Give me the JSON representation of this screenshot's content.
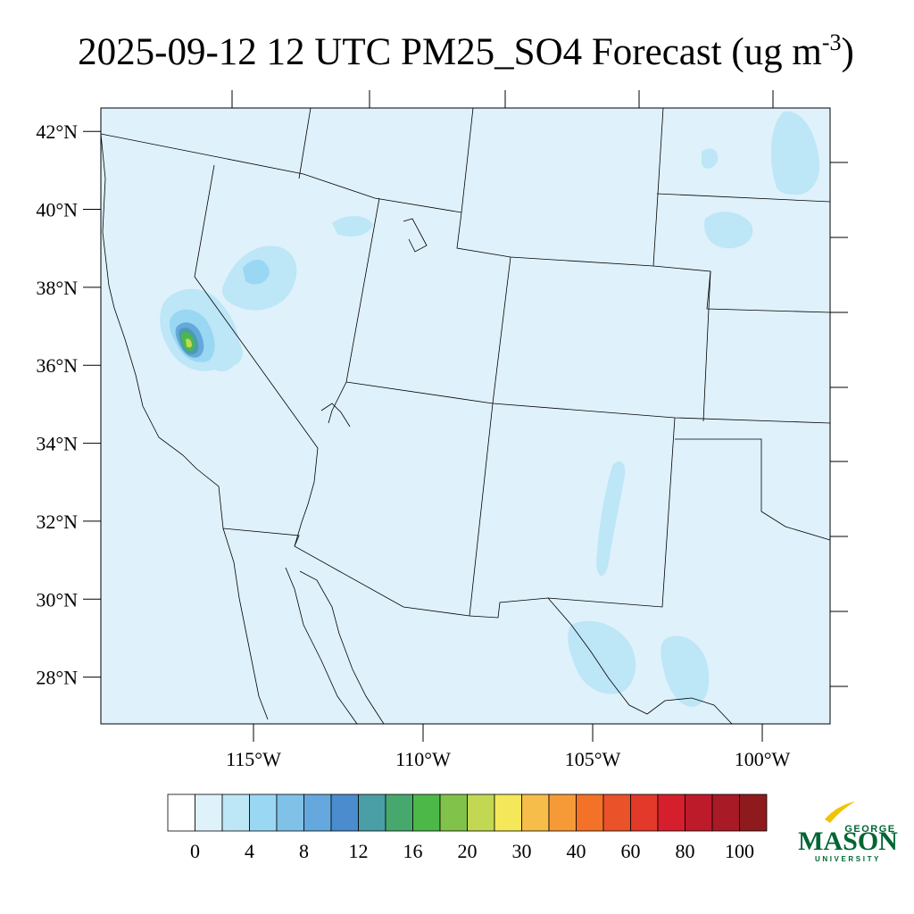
{
  "title": {
    "prefix": "2025-09-12 12 UTC PM25_SO4 Forecast (ug m",
    "exponent": "-3",
    "suffix": ")"
  },
  "map": {
    "lon_range": [
      -119.5,
      -98.0
    ],
    "lat_range": [
      26.8,
      42.6
    ],
    "background_color": "#dff1fb",
    "lat_ticks": [
      {
        "value": 42,
        "label": "42°N"
      },
      {
        "value": 40,
        "label": "40°N"
      },
      {
        "value": 38,
        "label": "38°N"
      },
      {
        "value": 36,
        "label": "36°N"
      },
      {
        "value": 34,
        "label": "34°N"
      },
      {
        "value": 32,
        "label": "32°N"
      },
      {
        "value": 30,
        "label": "30°N"
      },
      {
        "value": 28,
        "label": "28°N"
      }
    ],
    "lon_ticks": [
      {
        "value": -115,
        "label": "115°W"
      },
      {
        "value": -110,
        "label": "110°W"
      },
      {
        "value": -105,
        "label": "105°W"
      },
      {
        "value": -100,
        "label": "100°W"
      }
    ]
  },
  "colorbar": {
    "colors": [
      "#ffffff",
      "#dff1fb",
      "#bde6f7",
      "#9ad7f3",
      "#80c1e8",
      "#65a8dd",
      "#4a8ccd",
      "#4a9ea6",
      "#47a86e",
      "#4cb848",
      "#80c24a",
      "#c2d852",
      "#f4e85a",
      "#f7bd4a",
      "#f69a38",
      "#f37227",
      "#ea522a",
      "#e2392a",
      "#d61f2c",
      "#bd1b2a",
      "#a81a25",
      "#8e1a1e"
    ],
    "tick_labels": [
      "0",
      "4",
      "8",
      "12",
      "16",
      "20",
      "30",
      "40",
      "60",
      "80",
      "100"
    ],
    "tick_index": [
      1,
      3,
      5,
      7,
      9,
      11,
      13,
      15,
      17,
      19,
      21
    ]
  },
  "logo": {
    "top": "GEORGE",
    "main": "MASON",
    "bottom": "UNIVERSITY",
    "color": "#006633",
    "accent": "#f1c400"
  }
}
